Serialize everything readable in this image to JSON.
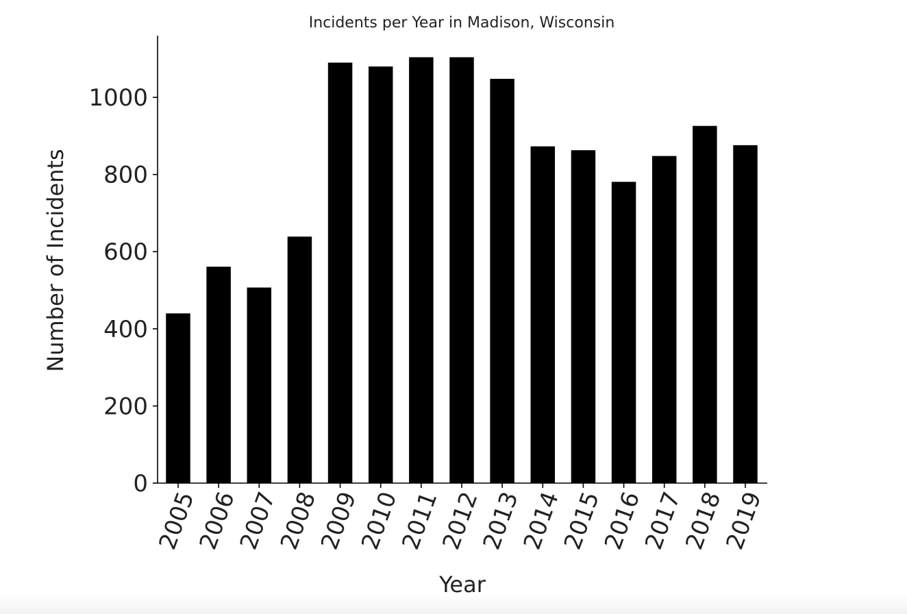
{
  "chart_data": {
    "type": "bar",
    "title": "Incidents per Year in Madison, Wisconsin",
    "xlabel": "Year",
    "ylabel": "Number of Incidents",
    "categories": [
      "2005",
      "2006",
      "2007",
      "2008",
      "2009",
      "2010",
      "2011",
      "2012",
      "2013",
      "2014",
      "2015",
      "2016",
      "2017",
      "2018",
      "2019"
    ],
    "values": [
      440,
      561,
      507,
      639,
      1090,
      1080,
      1104,
      1104,
      1048,
      873,
      863,
      781,
      848,
      926,
      876
    ],
    "ylim": [
      0,
      1160
    ],
    "yticks": [
      0,
      200,
      400,
      600,
      800,
      1000
    ],
    "bar_color": "#000000",
    "grid": false,
    "legend": "none"
  }
}
